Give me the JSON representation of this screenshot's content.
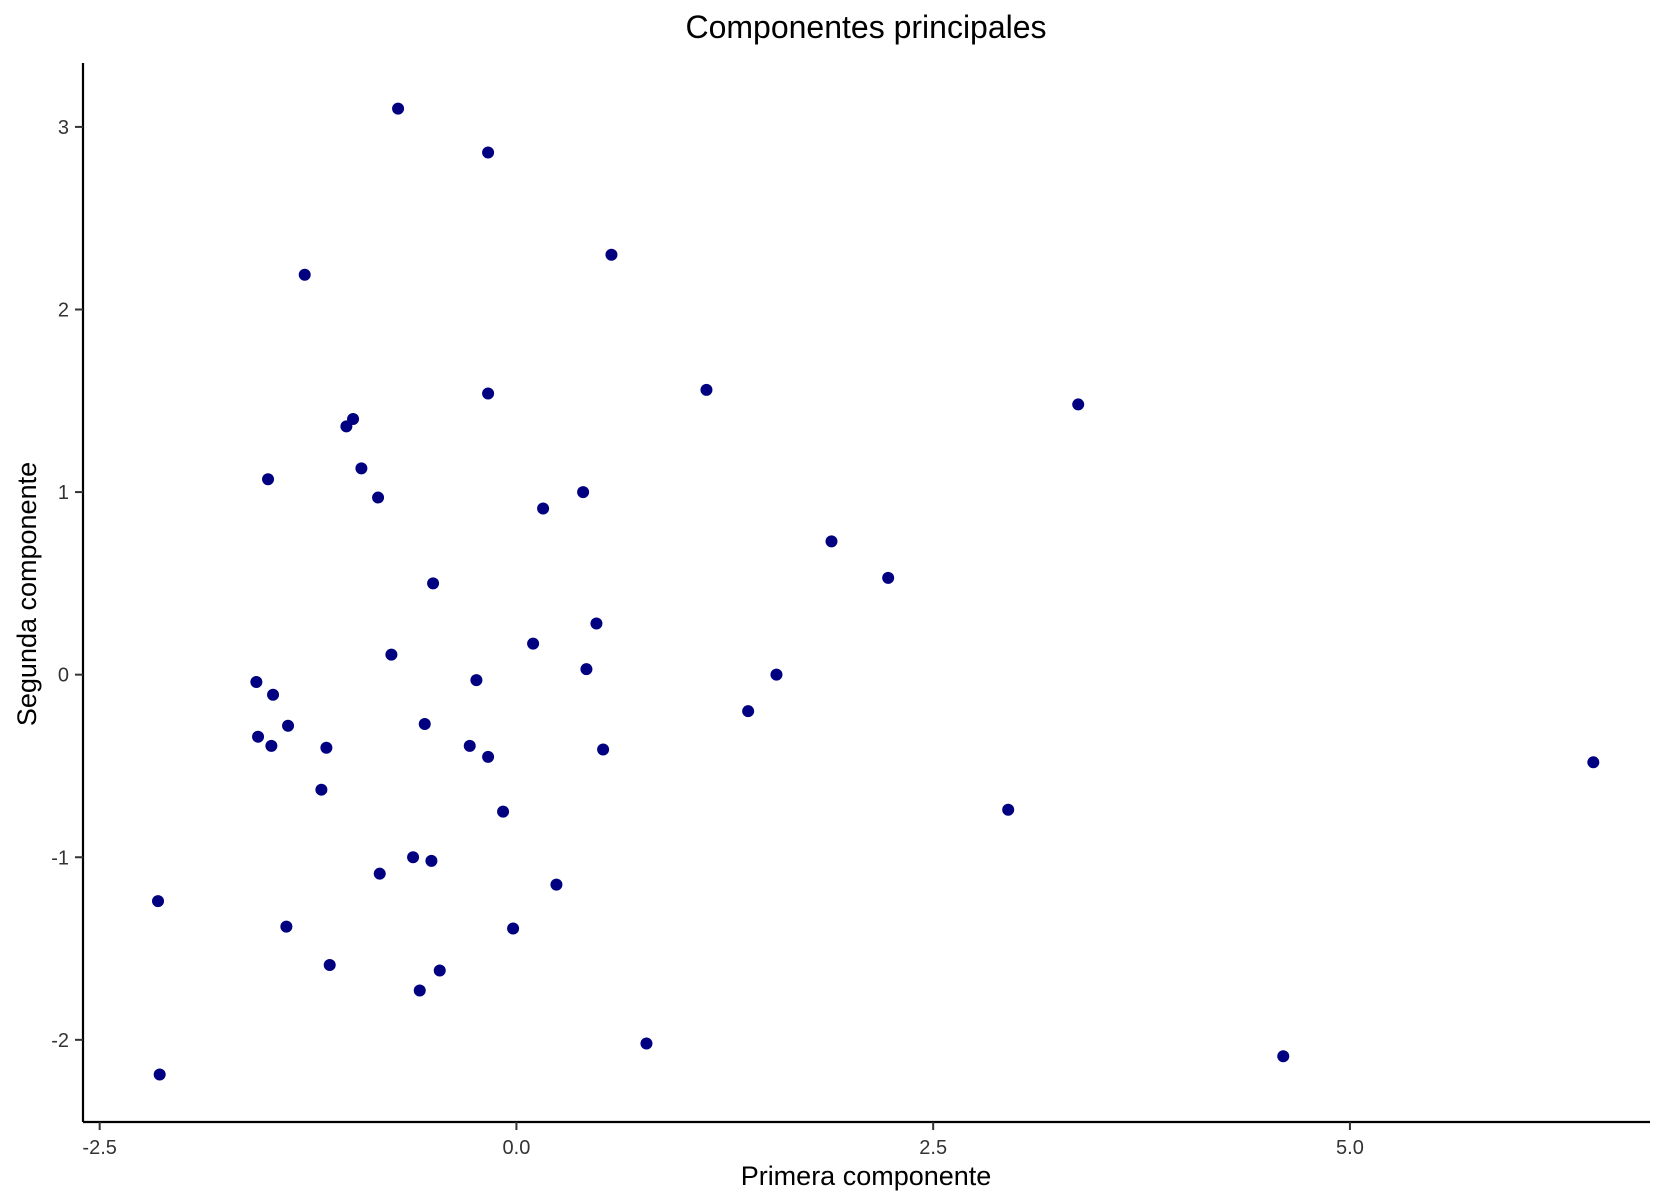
{
  "chart_data": {
    "type": "scatter",
    "title": "Componentes principales",
    "xlabel": "Primera componente",
    "ylabel": "Segunda componente",
    "xlim": [
      -2.6,
      6.8
    ],
    "ylim": [
      -2.45,
      3.35
    ],
    "xticks": [
      -2.5,
      0,
      2.5,
      5
    ],
    "xtick_labels": [
      "-2.5",
      "0.0",
      "2.5",
      "5.0"
    ],
    "yticks": [
      -2,
      -1,
      0,
      1,
      2,
      3
    ],
    "ytick_labels": [
      "-2",
      "-1",
      "0",
      "1",
      "2",
      "3"
    ],
    "grid": false,
    "point_color": "#000080",
    "series": [
      {
        "x": [
          -0.71,
          -0.17,
          0.57,
          -1.27,
          -0.17,
          1.14,
          3.37,
          -0.98,
          -1.02,
          -0.93,
          -1.49,
          -0.83,
          0.16,
          0.4,
          1.89,
          -0.5,
          2.23,
          0.48,
          0.1,
          -0.75,
          -1.56,
          -0.24,
          0.42,
          1.56,
          -1.46,
          -1.37,
          -0.55,
          1.39,
          -1.55,
          -0.28,
          -1.47,
          -1.14,
          -0.17,
          0.52,
          -1.17,
          -0.08,
          2.95,
          6.46,
          -0.62,
          -0.51,
          -0.82,
          0.24,
          -2.15,
          -1.38,
          -0.02,
          -1.12,
          -0.46,
          -0.58,
          0.78,
          4.6,
          -2.14
        ],
        "y": [
          3.1,
          2.86,
          2.3,
          2.19,
          1.54,
          1.56,
          1.48,
          1.4,
          1.36,
          1.13,
          1.07,
          0.97,
          0.91,
          1.0,
          0.73,
          0.5,
          0.53,
          0.28,
          0.17,
          0.11,
          -0.04,
          -0.03,
          0.03,
          0.0,
          -0.11,
          -0.28,
          -0.27,
          -0.2,
          -0.34,
          -0.39,
          -0.39,
          -0.4,
          -0.45,
          -0.41,
          -0.63,
          -0.75,
          -0.74,
          -0.48,
          -1.0,
          -1.02,
          -1.09,
          -1.15,
          -1.24,
          -1.38,
          -1.39,
          -1.59,
          -1.62,
          -1.73,
          -2.02,
          -2.09,
          -2.19
        ]
      }
    ]
  }
}
